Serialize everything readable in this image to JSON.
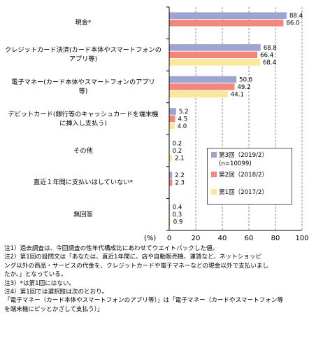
{
  "chart_data": {
    "type": "bar",
    "orientation": "horizontal",
    "categories": [
      "現金*",
      "クレジットカード決済(カード本体やスマートフォンのアプリ等)",
      "電子マネー(カード本体やスマートフォンのアプリ等)",
      "デビットカード(銀行等のキャッシュカードを端末機に挿入し支払う)",
      "その他",
      "直近１年間に支払いはしていない*",
      "無回答"
    ],
    "category_lines": [
      [
        "現金*"
      ],
      [
        "クレジットカード決済(カード本体やスマートフォンの",
        "アプリ等)"
      ],
      [
        "電子マネー(カード本体やスマートフォンのアプリ",
        "等)"
      ],
      [
        "デビットカード(銀行等のキャッシュカードを端末機",
        "に挿入し支払う)"
      ],
      [
        "その他"
      ],
      [
        "直近１年間に支払いはしていない*"
      ],
      [
        "無回答"
      ]
    ],
    "series": [
      {
        "name": "第3回（2019/2）(n=10099)",
        "values": [
          88.4,
          68.8,
          50.6,
          5.2,
          0.2,
          2.2,
          0.4
        ],
        "labels": [
          "88.4",
          "68.8",
          "50.6",
          "5.2",
          "0.2",
          "2.2",
          "0.4"
        ]
      },
      {
        "name": "第2回（2018/2）",
        "values": [
          86.0,
          66.4,
          49.2,
          4.5,
          0.2,
          2.3,
          0.3
        ],
        "labels": [
          "86.0",
          "66.4",
          "49.2",
          "4.5",
          "0.2",
          "2.3",
          "0.3"
        ]
      },
      {
        "name": "第1回（2017/2）",
        "values": [
          null,
          68.4,
          44.1,
          4.0,
          2.1,
          null,
          0.9
        ],
        "labels": [
          null,
          "68.4",
          "44.1",
          "4.0",
          "2.1",
          null,
          "0.9"
        ]
      }
    ],
    "xlim": [
      0,
      100
    ],
    "xticks": [
      "0",
      "20",
      "40",
      "60",
      "80",
      "100"
    ],
    "unit_label": "(%)",
    "grid": "dashed vertical",
    "legend_position": "inside-right"
  },
  "legend": {
    "items": [
      {
        "lines": [
          "第3回（2019/2）",
          "(n=10099)"
        ],
        "color": "#9ea4d0"
      },
      {
        "lines": [
          "第2回（2018/2）"
        ],
        "color": "#f1877d"
      },
      {
        "lines": [
          "第1回（2017/2）"
        ],
        "color": "#fde79a"
      }
    ]
  },
  "notes": [
    "注1）過去調査は、今回調査の性年代構成比にあわせてウエイトバックした値。",
    "注2）第1回の設問文は「あなたは、直近1年間に、店や自動販売機、運賃など、ネットショッピ",
    "ング以外の商品・サービスの代金を、クレジットカードや電子マネーなどの現金以外で支払いまし",
    "たか。」となっている。",
    "注3）*は第1回にはない。",
    "注4）第1回では選択肢は次のとおり。",
    "「電子マネー（カード本体やスマートフォンのアプリ等）」は「電子マネー（カードやスマートフォン等",
    "を端末機にピッとかざして支払う）」"
  ]
}
